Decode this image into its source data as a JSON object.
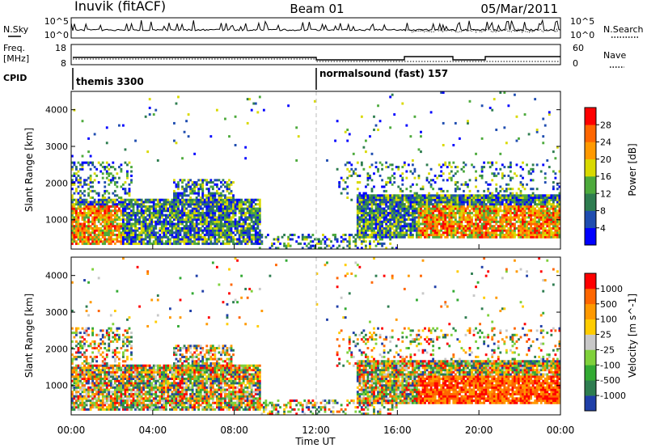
{
  "header": {
    "station": "Inuvik (fitACF)",
    "beam": "Beam 01",
    "date": "05/Mar/2011"
  },
  "noise_panel": {
    "left_label": "N.Sky",
    "right_label": "N.Search",
    "left_ticks": [
      "10^5",
      "10^0"
    ],
    "right_ticks": [
      "10^5",
      "10^0"
    ]
  },
  "freq_panel": {
    "left_label_1": "Freq.",
    "left_label_2": "[MHz]",
    "right_label": "Nave",
    "left_ticks": [
      "18",
      "8"
    ],
    "right_ticks": [
      "60",
      "0"
    ]
  },
  "cpid_panel": {
    "label": "CPID",
    "segments": [
      {
        "name": "themis 3300",
        "start_hour": 0
      },
      {
        "name": "normalsound (fast) 157",
        "start_hour": 12
      }
    ]
  },
  "colors": {
    "power": [
      "#0000ff",
      "#1f4db0",
      "#2e7d50",
      "#4daa3c",
      "#d9d900",
      "#ff9900",
      "#ff6600",
      "#ff0000"
    ],
    "velocity": [
      "#1f3fa8",
      "#2e7d50",
      "#33aa33",
      "#7fd13b",
      "#c8c8c8",
      "#ffcc00",
      "#ff9900",
      "#ff6600",
      "#ff0000"
    ]
  },
  "chart_data": [
    {
      "type": "heatmap",
      "title": "Power",
      "ylabel": "Slant Range [km]",
      "colorbar_label": "Power [dB]",
      "colorbar_ticks": [
        "4",
        "8",
        "12",
        "16",
        "20",
        "24",
        "28"
      ],
      "xlim": [
        0,
        24
      ],
      "ylim": [
        200,
        4500
      ],
      "yticks": [
        "1000",
        "2000",
        "3000",
        "4000"
      ]
    },
    {
      "type": "heatmap",
      "title": "Velocity",
      "ylabel": "Slant Range [km]",
      "xlabel": "Time UT",
      "colorbar_label": "Velocity [m s^-1]",
      "colorbar_ticks": [
        "-1000",
        "-500",
        "-100",
        "-25",
        "25",
        "100",
        "500",
        "1000"
      ],
      "xlim": [
        0,
        24
      ],
      "ylim": [
        200,
        4500
      ],
      "yticks": [
        "1000",
        "2000",
        "3000",
        "4000"
      ],
      "xticks": [
        "00:00",
        "04:00",
        "08:00",
        "12:00",
        "16:00",
        "20:00",
        "00:00"
      ]
    }
  ]
}
